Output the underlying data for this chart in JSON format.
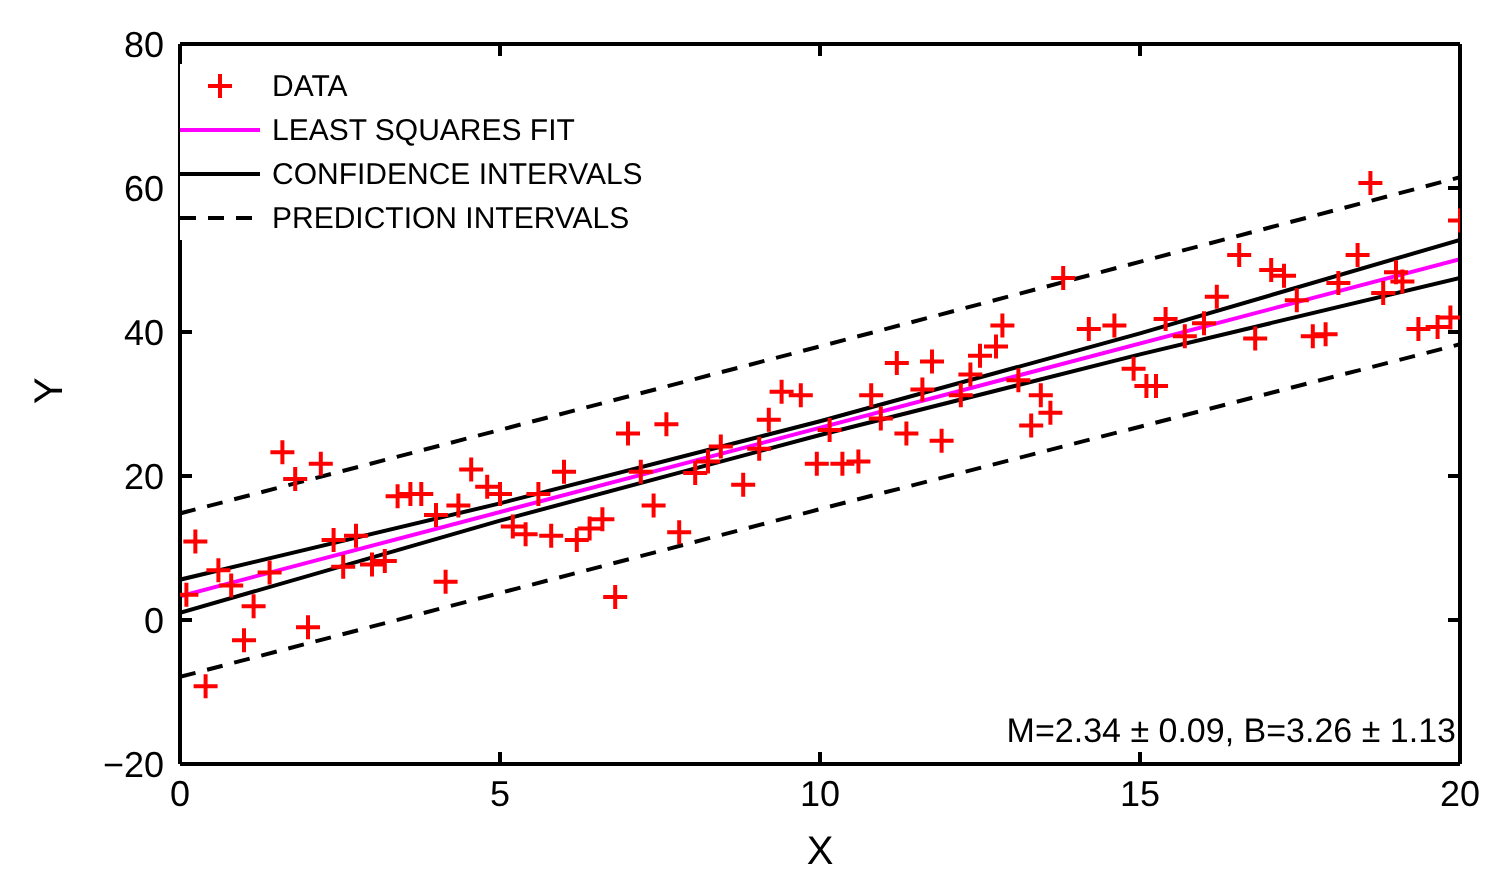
{
  "chart_data": {
    "type": "scatter",
    "xlabel": "X",
    "ylabel": "Y",
    "xlim": [
      0,
      20
    ],
    "ylim": [
      -20,
      80
    ],
    "xticks": [
      0,
      5,
      10,
      15,
      20
    ],
    "yticks": [
      -20,
      0,
      20,
      40,
      60,
      80
    ],
    "grid": false,
    "legend": "top left",
    "annotations": [
      "M=2.34 ± 0.09, B=3.26 ± 1.13"
    ],
    "series": [
      {
        "name": "DATA",
        "type": "scatter",
        "marker": "cross",
        "color": "#ff0000",
        "x": [
          0.1,
          0.24,
          0.4,
          0.6,
          0.8,
          1.0,
          1.15,
          1.4,
          1.6,
          1.8,
          2.0,
          2.2,
          2.4,
          2.55,
          2.75,
          3.0,
          3.2,
          3.4,
          3.6,
          3.77,
          4.0,
          4.15,
          4.35,
          4.55,
          4.8,
          5.0,
          5.2,
          5.4,
          5.6,
          5.8,
          6.0,
          6.2,
          6.4,
          6.6,
          6.8,
          7.0,
          7.2,
          7.4,
          7.6,
          7.8,
          8.05,
          8.25,
          8.45,
          8.8,
          9.05,
          9.2,
          9.4,
          9.7,
          9.95,
          10.15,
          10.35,
          10.6,
          10.8,
          10.95,
          11.2,
          11.35,
          11.6,
          11.75,
          11.9,
          12.2,
          12.35,
          12.5,
          12.75,
          12.85,
          13.1,
          13.3,
          13.45,
          13.6,
          13.8,
          14.2,
          14.6,
          14.9,
          15.1,
          15.25,
          15.4,
          15.7,
          16.0,
          16.2,
          16.55,
          16.8,
          17.05,
          17.25,
          17.45,
          17.7,
          17.9,
          18.1,
          18.4,
          18.6,
          18.8,
          19.0,
          19.1,
          19.35,
          19.65,
          19.85,
          20.0
        ],
        "values": [
          3.5,
          10.9,
          -9.2,
          6.9,
          4.8,
          -2.8,
          1.9,
          6.6,
          23.3,
          19.6,
          -1.0,
          21.7,
          11.1,
          7.4,
          11.7,
          7.7,
          8.2,
          17.2,
          17.5,
          17.5,
          14.6,
          5.3,
          15.9,
          20.9,
          18.5,
          17.5,
          13.0,
          11.9,
          17.5,
          11.7,
          20.6,
          11.1,
          12.7,
          14.0,
          3.2,
          25.9,
          20.6,
          15.9,
          27.2,
          12.2,
          20.4,
          22.0,
          24.1,
          18.8,
          23.8,
          27.8,
          31.7,
          31.2,
          21.7,
          26.4,
          21.7,
          22.0,
          31.2,
          28.0,
          35.7,
          25.9,
          32.0,
          35.9,
          24.9,
          31.2,
          34.1,
          36.7,
          38.0,
          40.9,
          33.3,
          27.0,
          31.2,
          28.8,
          47.5,
          40.4,
          40.9,
          34.9,
          32.5,
          32.5,
          41.8,
          39.4,
          41.2,
          44.9,
          50.7,
          39.1,
          48.6,
          47.8,
          44.4,
          39.4,
          39.7,
          46.8,
          50.7,
          60.7,
          45.4,
          48.3,
          47.0,
          40.4,
          40.7,
          42.0,
          55.5
        ]
      },
      {
        "name": "LEAST SQUARES FIT",
        "type": "line",
        "marker": "none",
        "line_style": "solid",
        "color": "#ff00ff",
        "x": [
          0,
          20
        ],
        "values": [
          3.3,
          50.1
        ]
      },
      {
        "name": "CONFIDENCE INTERVALS",
        "type": "line",
        "marker": "none",
        "line_style": "solid",
        "color": "#000000",
        "x": [
          0,
          5,
          10,
          15,
          20
        ],
        "values": [
          5.6,
          16.2,
          27.6,
          39.8,
          52.8
        ]
      },
      {
        "type": "line",
        "marker": "none",
        "line_style": "solid",
        "color": "#000000",
        "x": [
          0,
          5,
          10,
          15,
          20
        ],
        "values": [
          1.0,
          13.8,
          25.7,
          36.9,
          47.5
        ]
      },
      {
        "name": "PREDICTION INTERVALS",
        "type": "line",
        "marker": "none",
        "line_style": "dashed",
        "color": "#000000",
        "x": [
          0,
          10,
          20
        ],
        "values": [
          14.8,
          38.0,
          61.5
        ]
      },
      {
        "type": "line",
        "marker": "none",
        "line_style": "dashed",
        "color": "#000000",
        "x": [
          0,
          10,
          20
        ],
        "values": [
          -7.9,
          15.4,
          38.3
        ]
      }
    ]
  }
}
